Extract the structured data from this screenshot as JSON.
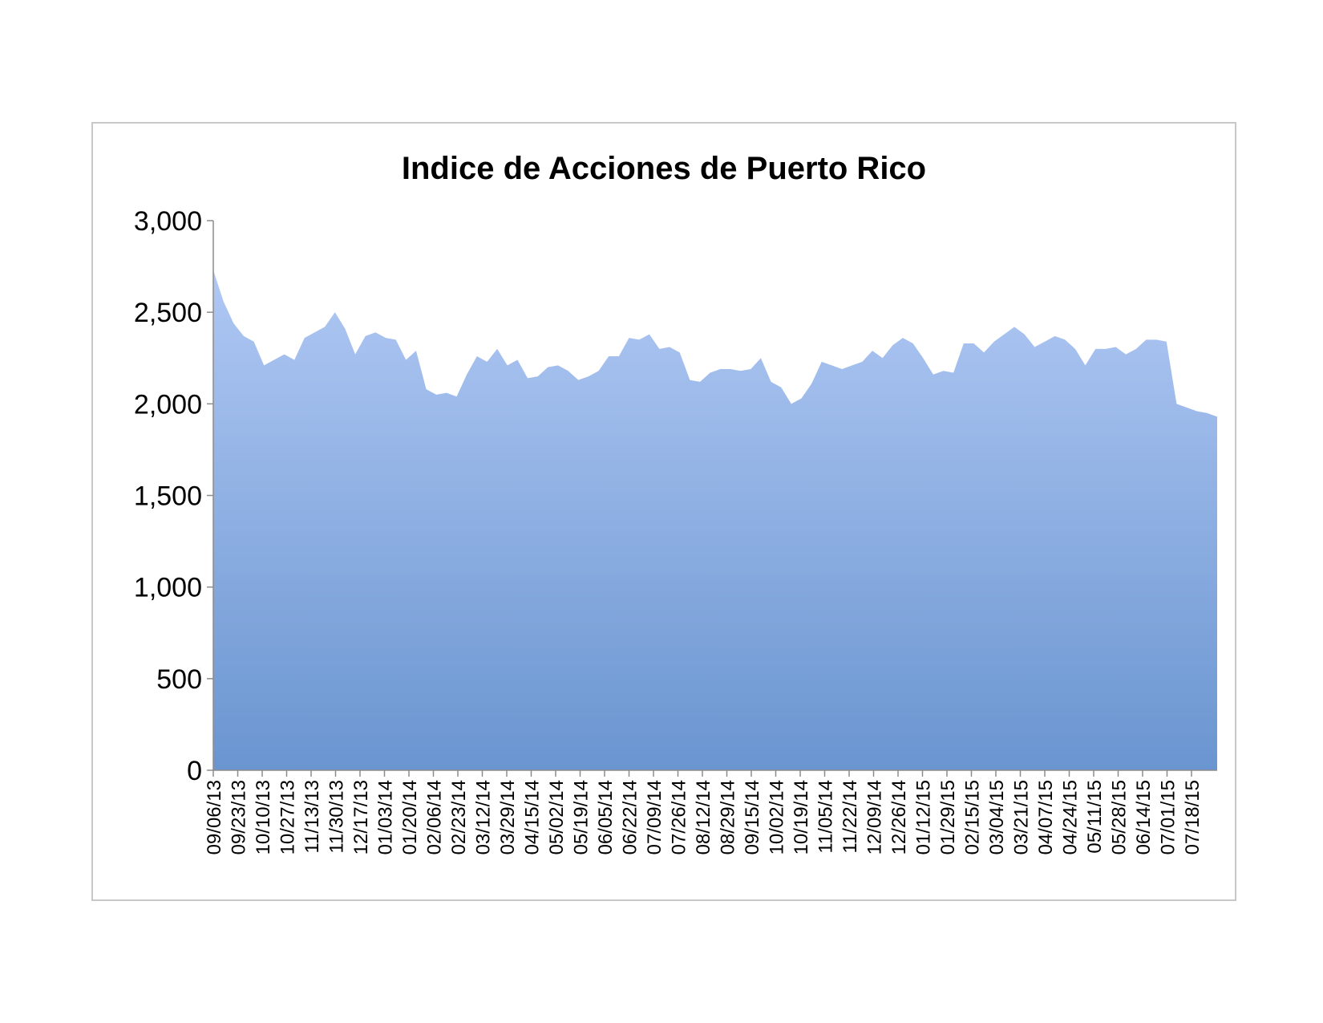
{
  "chart_data": {
    "type": "area",
    "title": "Indice de Acciones de Puerto Rico",
    "xlabel": "",
    "ylabel": "",
    "ylim": [
      0,
      3000
    ],
    "yticks": [
      0,
      500,
      1000,
      1500,
      2000,
      2500,
      3000
    ],
    "ytick_labels": [
      "0",
      "500",
      "1,000",
      "1,500",
      "2,000",
      "2,500",
      "3,000"
    ],
    "xtick_labels": [
      "09/06/13",
      "09/23/13",
      "10/10/13",
      "10/27/13",
      "11/13/13",
      "11/30/13",
      "12/17/13",
      "01/03/14",
      "01/20/14",
      "02/06/14",
      "02/23/14",
      "03/12/14",
      "03/29/14",
      "04/15/14",
      "05/02/14",
      "05/19/14",
      "06/05/14",
      "06/22/14",
      "07/09/14",
      "07/26/14",
      "08/12/14",
      "08/29/14",
      "09/15/14",
      "10/02/14",
      "10/19/14",
      "11/05/14",
      "11/22/14",
      "12/09/14",
      "12/26/14",
      "01/12/15",
      "01/29/15",
      "02/15/15",
      "03/04/15",
      "03/21/15",
      "04/07/15",
      "04/24/15",
      "05/11/15",
      "05/28/15",
      "06/14/15",
      "07/01/15",
      "07/18/15"
    ],
    "grid": false,
    "legend": "none",
    "fill_top_color": "#b0c8f4",
    "fill_bottom_color": "#6a95d0",
    "axis_color": "#8c8c8c",
    "series": [
      {
        "values": [
          2730,
          2560,
          2440,
          2370,
          2340,
          2210,
          2240,
          2270,
          2240,
          2360,
          2390,
          2420,
          2500,
          2410,
          2270,
          2370,
          2390,
          2360,
          2350,
          2240,
          2290,
          2080,
          2050,
          2060,
          2040,
          2160,
          2260,
          2230,
          2300,
          2210,
          2240,
          2140,
          2150,
          2200,
          2210,
          2180,
          2130,
          2150,
          2180,
          2260,
          2260,
          2360,
          2350,
          2380,
          2300,
          2310,
          2280,
          2130,
          2120,
          2170,
          2190,
          2190,
          2180,
          2190,
          2250,
          2120,
          2090,
          2000,
          2030,
          2110,
          2230,
          2210,
          2190,
          2210,
          2230,
          2290,
          2250,
          2320,
          2360,
          2330,
          2250,
          2160,
          2180,
          2170,
          2330,
          2330,
          2280,
          2340,
          2380,
          2420,
          2380,
          2310,
          2340,
          2370,
          2350,
          2300,
          2210,
          2300,
          2300,
          2310,
          2270,
          2300,
          2350,
          2350,
          2340,
          2000,
          1980,
          1960,
          1950,
          1930
        ]
      }
    ]
  }
}
